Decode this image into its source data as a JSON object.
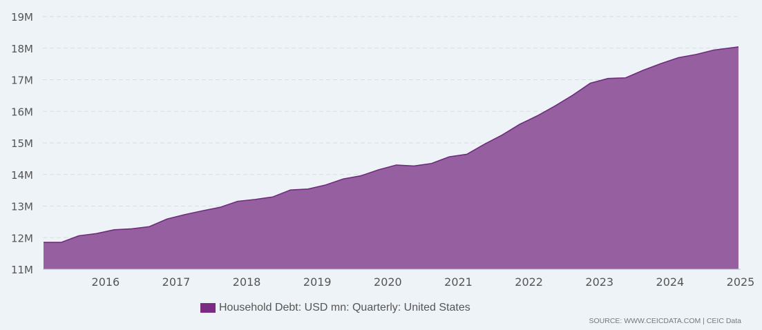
{
  "chart_data": {
    "type": "area",
    "title": "",
    "xlabel": "",
    "ylabel": "",
    "ylim": [
      11000000,
      19000000
    ],
    "yticks": [
      "11M",
      "12M",
      "13M",
      "14M",
      "15M",
      "16M",
      "17M",
      "18M",
      "19M"
    ],
    "xlim": [
      2015.11,
      2025.0
    ],
    "xticks": [
      "2016",
      "2017",
      "2018",
      "2019",
      "2020",
      "2021",
      "2022",
      "2023",
      "2024",
      "2025"
    ],
    "grid": true,
    "legend_position": "bottom-center",
    "series": [
      {
        "name": "Household Debt: USD mn: Quarterly: United States",
        "x": [
          2015.12,
          2015.37,
          2015.62,
          2015.87,
          2016.12,
          2016.37,
          2016.62,
          2016.87,
          2017.12,
          2017.37,
          2017.62,
          2017.87,
          2018.12,
          2018.37,
          2018.62,
          2018.87,
          2019.12,
          2019.37,
          2019.62,
          2019.87,
          2020.12,
          2020.37,
          2020.62,
          2020.87,
          2021.12,
          2021.37,
          2021.62,
          2021.87,
          2022.12,
          2022.37,
          2022.62,
          2022.87,
          2023.12,
          2023.37,
          2023.62,
          2023.87,
          2024.12,
          2024.37,
          2024.62,
          2024.97
        ],
        "values": [
          11850000,
          11850000,
          12060000,
          12130000,
          12250000,
          12280000,
          12350000,
          12590000,
          12730000,
          12850000,
          12960000,
          13150000,
          13210000,
          13290000,
          13510000,
          13540000,
          13670000,
          13860000,
          13960000,
          14150000,
          14300000,
          14270000,
          14350000,
          14560000,
          14640000,
          14960000,
          15250000,
          15590000,
          15860000,
          16170000,
          16510000,
          16890000,
          17040000,
          17060000,
          17300000,
          17510000,
          17700000,
          17800000,
          17940000,
          18040000
        ]
      }
    ],
    "colors": {
      "fill": "#965fa0",
      "line": "#6e2c7d",
      "legend_swatch": "#7a2b82",
      "grid": "#d6dde3",
      "axis": "#bbc4cc"
    },
    "source": "SOURCE: WWW.CEICDATA.COM | CEIC Data"
  }
}
